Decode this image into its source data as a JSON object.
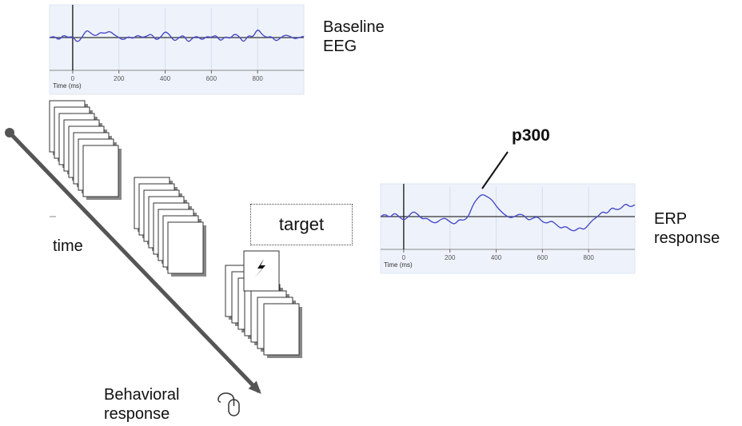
{
  "labels": {
    "baseline_eeg": [
      "Baseline",
      "EEG"
    ],
    "erp_response": [
      "ERP",
      "response"
    ],
    "time_arrow": "time",
    "behavioral_response": [
      "Behavioral",
      "response"
    ],
    "target_box": "target",
    "p300": "p300"
  },
  "chart_data": [
    {
      "type": "line",
      "name": "baseline-eeg-plot",
      "xlabel": "Time (ms)",
      "ylabel": "",
      "xticks": [
        0,
        200,
        400,
        600,
        800
      ],
      "xlim": [
        -100,
        1000
      ],
      "ylim": [
        -1,
        1
      ],
      "grid": true,
      "series": [
        {
          "x": [
            -100,
            -80,
            -60,
            -40,
            -20,
            0,
            20,
            40,
            60,
            80,
            100,
            120,
            140,
            160,
            180,
            200,
            220,
            240,
            260,
            280,
            300,
            320,
            340,
            360,
            380,
            400,
            420,
            440,
            460,
            480,
            500,
            520,
            540,
            560,
            580,
            600,
            620,
            640,
            660,
            680,
            700,
            720,
            740,
            760,
            780,
            800,
            820,
            840,
            860,
            880,
            900,
            920,
            940,
            960,
            980,
            1000
          ],
          "y": [
            0.0,
            0.05,
            -0.1,
            0.1,
            0.0,
            0.05,
            -0.2,
            0.0,
            0.3,
            0.15,
            0.05,
            0.2,
            0.15,
            0.25,
            0.1,
            0.0,
            -0.1,
            0.05,
            -0.05,
            0.1,
            0.0,
            0.05,
            0.15,
            -0.1,
            0.0,
            0.25,
            0.1,
            -0.15,
            0.0,
            0.1,
            -0.2,
            0.0,
            0.05,
            -0.1,
            0.05,
            0.0,
            0.1,
            -0.15,
            0.05,
            -0.05,
            0.15,
            0.05,
            -0.2,
            0.1,
            0.0,
            0.35,
            0.1,
            0.0,
            0.05,
            -0.15,
            0.0,
            0.1,
            0.05,
            -0.05,
            0.0,
            0.05
          ]
        }
      ]
    },
    {
      "type": "line",
      "name": "erp-response-plot",
      "xlabel": "Time (ms)",
      "ylabel": "",
      "xticks": [
        0,
        200,
        400,
        600,
        800
      ],
      "xlim": [
        -100,
        1000
      ],
      "ylim": [
        -1,
        1
      ],
      "grid": true,
      "series": [
        {
          "x": [
            -100,
            -80,
            -60,
            -40,
            -20,
            0,
            20,
            40,
            60,
            80,
            100,
            120,
            140,
            160,
            180,
            200,
            220,
            240,
            260,
            280,
            300,
            320,
            340,
            360,
            380,
            400,
            420,
            440,
            460,
            480,
            500,
            520,
            540,
            560,
            580,
            600,
            620,
            640,
            660,
            680,
            700,
            720,
            740,
            760,
            780,
            800,
            820,
            840,
            860,
            880,
            900,
            920,
            940,
            960,
            980,
            1000
          ],
          "y": [
            0.0,
            0.1,
            -0.05,
            0.15,
            0.0,
            -0.15,
            0.0,
            0.2,
            0.1,
            -0.1,
            -0.05,
            -0.2,
            -0.25,
            -0.1,
            -0.05,
            -0.2,
            -0.3,
            -0.1,
            -0.15,
            0.0,
            0.45,
            0.7,
            0.85,
            0.75,
            0.65,
            0.4,
            0.2,
            0.05,
            -0.05,
            0.0,
            0.1,
            0.05,
            -0.15,
            -0.05,
            0.0,
            -0.2,
            -0.25,
            -0.15,
            -0.3,
            -0.45,
            -0.35,
            -0.5,
            -0.55,
            -0.4,
            -0.5,
            -0.3,
            -0.1,
            0.0,
            0.2,
            0.1,
            0.35,
            0.25,
            0.3,
            0.5,
            0.35,
            0.45
          ]
        }
      ]
    }
  ],
  "p300_peak_ms": 340,
  "colors": {
    "trace": "#4a4bc8",
    "plot_bg": "#eef3fb",
    "axis": "#333333",
    "arrow": "#555555",
    "stack_shadow": "#888888"
  },
  "icons": [
    "mouse-icon",
    "flash-icon"
  ]
}
